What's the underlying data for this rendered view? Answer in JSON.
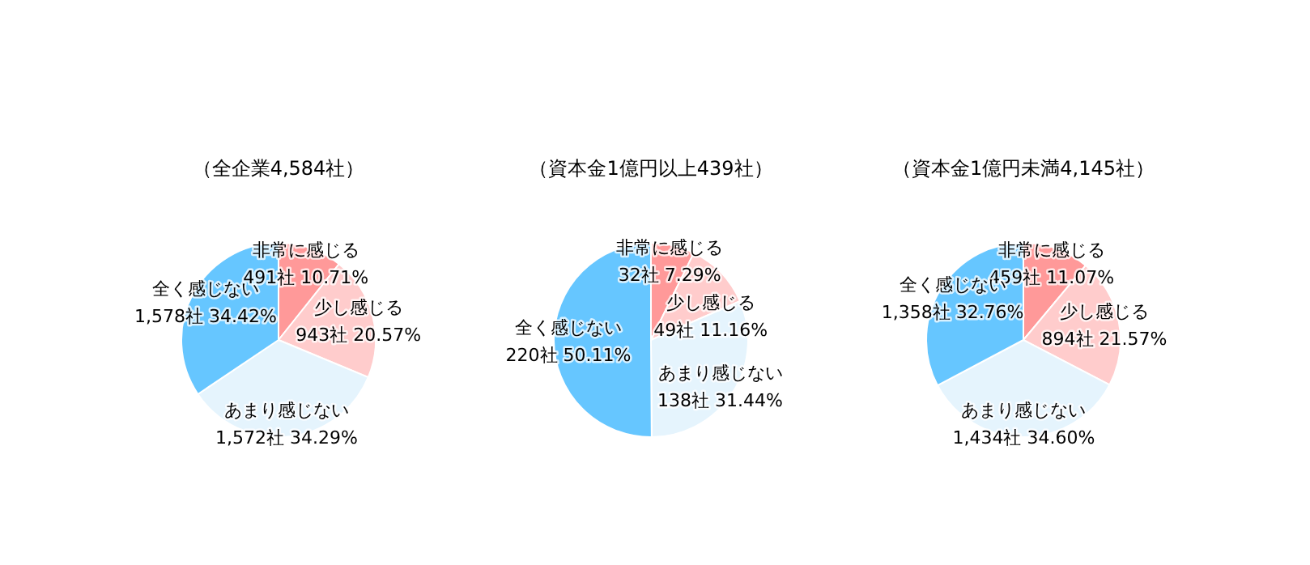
{
  "chart_data": [
    {
      "type": "pie",
      "title": "（全企業4,584社）",
      "categories": [
        "非常に感じる",
        "少し感じる",
        "あまり感じない",
        "全く感じない"
      ],
      "values": [
        491,
        943,
        1572,
        1578
      ],
      "colors": [
        "#ff9999",
        "#ffcccc",
        "#e5f4fd",
        "#66c6ff"
      ],
      "value_labels": [
        "491社 10.71%",
        "943社 20.57%",
        "1,572社 34.29%",
        "1,578社 34.42%"
      ]
    },
    {
      "type": "pie",
      "title": "（資本金1億円以上439社）",
      "categories": [
        "非常に感じる",
        "少し感じる",
        "あまり感じない",
        "全く感じない"
      ],
      "values": [
        32,
        49,
        138,
        220
      ],
      "colors": [
        "#ff9999",
        "#ffcccc",
        "#e5f4fd",
        "#66c6ff"
      ],
      "value_labels": [
        "32社 7.29%",
        "49社 11.16%",
        "138社 31.44%",
        "220社 50.11%"
      ]
    },
    {
      "type": "pie",
      "title": "（資本金1億円未満4,145社）",
      "categories": [
        "非常に感じる",
        "少し感じる",
        "あまり感じない",
        "全く感じない"
      ],
      "values": [
        459,
        894,
        1434,
        1358
      ],
      "colors": [
        "#ff9999",
        "#ffcccc",
        "#e5f4fd",
        "#66c6ff"
      ],
      "value_labels": [
        "459社 11.07%",
        "894社 21.57%",
        "1,434社 34.60%",
        "1,358社 32.76%"
      ]
    }
  ]
}
